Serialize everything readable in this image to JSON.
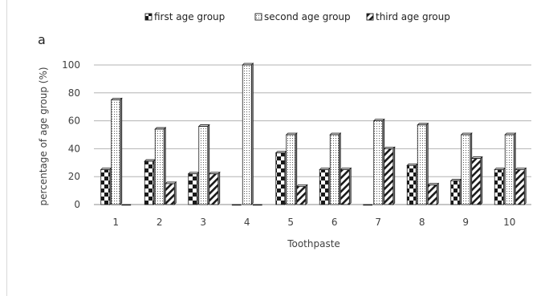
{
  "panel_label": "a",
  "chart_data": {
    "type": "bar",
    "title": "",
    "xlabel": "Toothpaste",
    "ylabel": "percentage of age group (%)",
    "categories": [
      "1",
      "2",
      "3",
      "4",
      "5",
      "6",
      "7",
      "8",
      "9",
      "10"
    ],
    "series": [
      {
        "name": "first age  group",
        "values": [
          25,
          31,
          22,
          0,
          37,
          25,
          0,
          28,
          17,
          25
        ]
      },
      {
        "name": "second age group",
        "values": [
          75,
          54,
          56,
          100,
          50,
          50,
          60,
          57,
          50,
          50
        ]
      },
      {
        "name": "third  age group",
        "values": [
          0,
          15,
          22,
          0,
          13,
          25,
          40,
          14,
          33,
          25
        ]
      }
    ],
    "ylim": [
      0,
      100
    ],
    "yticks": [
      0,
      20,
      40,
      60,
      80,
      100
    ],
    "grid": true,
    "legend_position": "top"
  }
}
